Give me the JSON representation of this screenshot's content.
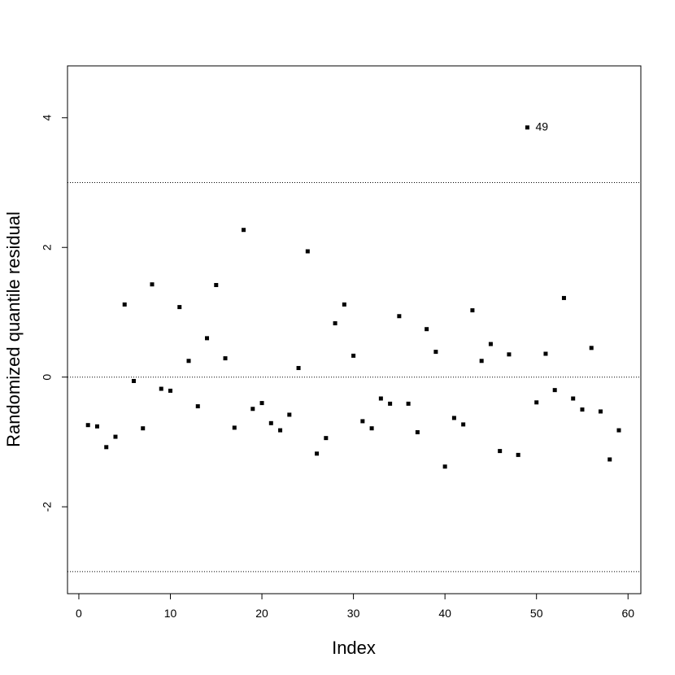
{
  "chart_data": {
    "type": "scatter",
    "x_label": "Index",
    "y_label": "Randomized quantile residual",
    "x": [
      1,
      2,
      3,
      4,
      5,
      6,
      7,
      8,
      9,
      10,
      11,
      12,
      13,
      14,
      15,
      16,
      17,
      18,
      19,
      20,
      21,
      22,
      23,
      24,
      25,
      26,
      27,
      28,
      29,
      30,
      31,
      32,
      33,
      34,
      35,
      36,
      37,
      38,
      39,
      40,
      41,
      42,
      43,
      44,
      45,
      46,
      47,
      48,
      49,
      50,
      51,
      52,
      53,
      54,
      55,
      56,
      57,
      58,
      59
    ],
    "values": [
      -0.74,
      -0.76,
      -1.08,
      -0.92,
      1.12,
      -0.06,
      -0.79,
      1.43,
      -0.18,
      -0.21,
      1.08,
      0.25,
      -0.45,
      0.6,
      1.42,
      0.29,
      -0.78,
      2.27,
      -0.49,
      -0.4,
      -0.71,
      -0.82,
      -0.58,
      0.14,
      1.94,
      -1.18,
      -0.94,
      0.83,
      1.12,
      0.33,
      -0.68,
      -0.79,
      -0.33,
      -0.41,
      0.94,
      -0.41,
      -0.85,
      0.74,
      0.39,
      -1.38,
      -0.63,
      -0.73,
      1.03,
      0.25,
      0.51,
      -1.14,
      0.35,
      -1.2,
      3.85,
      -0.39,
      0.36,
      -0.2,
      1.22,
      -0.33,
      -0.5,
      0.45,
      -0.53,
      -1.27,
      -0.82
    ],
    "color": "#000000",
    "xlim": [
      -1.24,
      61.4
    ],
    "ylim": [
      -3.34,
      4.8
    ],
    "xticks": [
      0,
      10,
      20,
      30,
      40,
      50,
      60
    ],
    "yticks": [
      -2,
      0,
      2,
      4
    ],
    "hlines": [
      -3,
      0,
      3
    ],
    "annotations": [
      {
        "text": "49",
        "x": 49,
        "y": 3.85
      }
    ]
  }
}
